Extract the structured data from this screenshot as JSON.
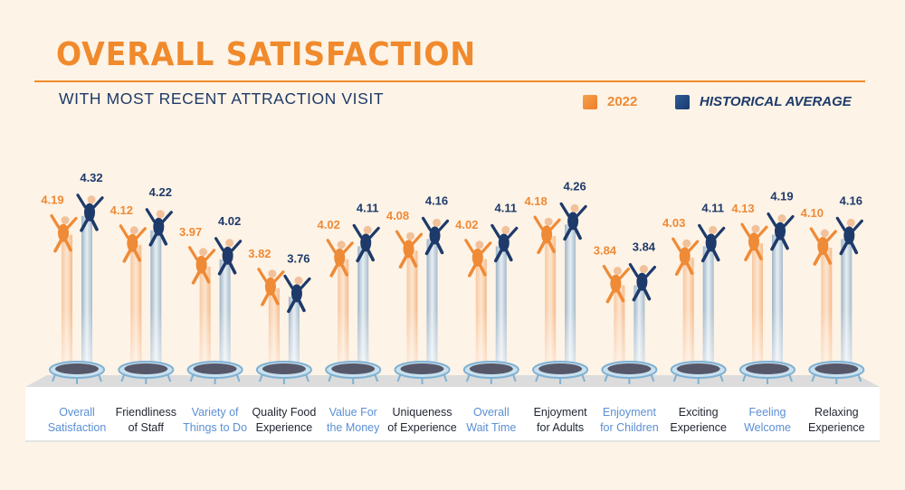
{
  "header": {
    "title": "OVERALL SATISFACTION",
    "subtitle": "WITH MOST RECENT ATTRACTION VISIT"
  },
  "legend": {
    "current_label": "2022",
    "historical_label": "HISTORICAL AVERAGE"
  },
  "colors": {
    "current": "#ef8a36",
    "historical": "#1e3a6a",
    "accent_label": "#5b8fd4",
    "dark_label": "#1f2430"
  },
  "chart_data": {
    "type": "bar",
    "title": "OVERALL SATISFACTION",
    "subtitle": "WITH MOST RECENT ATTRACTION VISIT",
    "categories": [
      [
        "Overall",
        "Satisfaction"
      ],
      [
        "Friendliness",
        "of Staff"
      ],
      [
        "Variety of",
        "Things to Do"
      ],
      [
        "Quality Food",
        "Experience"
      ],
      [
        "Value For",
        "the Money"
      ],
      [
        "Uniqueness",
        "of Experience"
      ],
      [
        "Overall",
        "Wait Time"
      ],
      [
        "Enjoyment",
        "for Adults"
      ],
      [
        "Enjoyment",
        "for Children"
      ],
      [
        "Exciting",
        "Experience"
      ],
      [
        "Feeling",
        "Welcome"
      ],
      [
        "Relaxing",
        "Experience"
      ]
    ],
    "series": [
      {
        "name": "2022",
        "values": [
          "4.19",
          "4.12",
          "3.97",
          "3.82",
          "4.02",
          "4.08",
          "4.02",
          "4.18",
          "3.84",
          "4.03",
          "4.13",
          "4.10"
        ]
      },
      {
        "name": "HISTORICAL AVERAGE",
        "values": [
          "4.32",
          "4.22",
          "4.02",
          "3.76",
          "4.11",
          "4.16",
          "4.11",
          "4.26",
          "3.84",
          "4.11",
          "4.19",
          "4.16"
        ]
      }
    ],
    "label_style": [
      "accent",
      "dark",
      "accent",
      "dark",
      "accent",
      "dark",
      "accent",
      "dark",
      "accent",
      "dark",
      "accent",
      "dark"
    ],
    "legend_position": "top-right",
    "grid": false
  }
}
